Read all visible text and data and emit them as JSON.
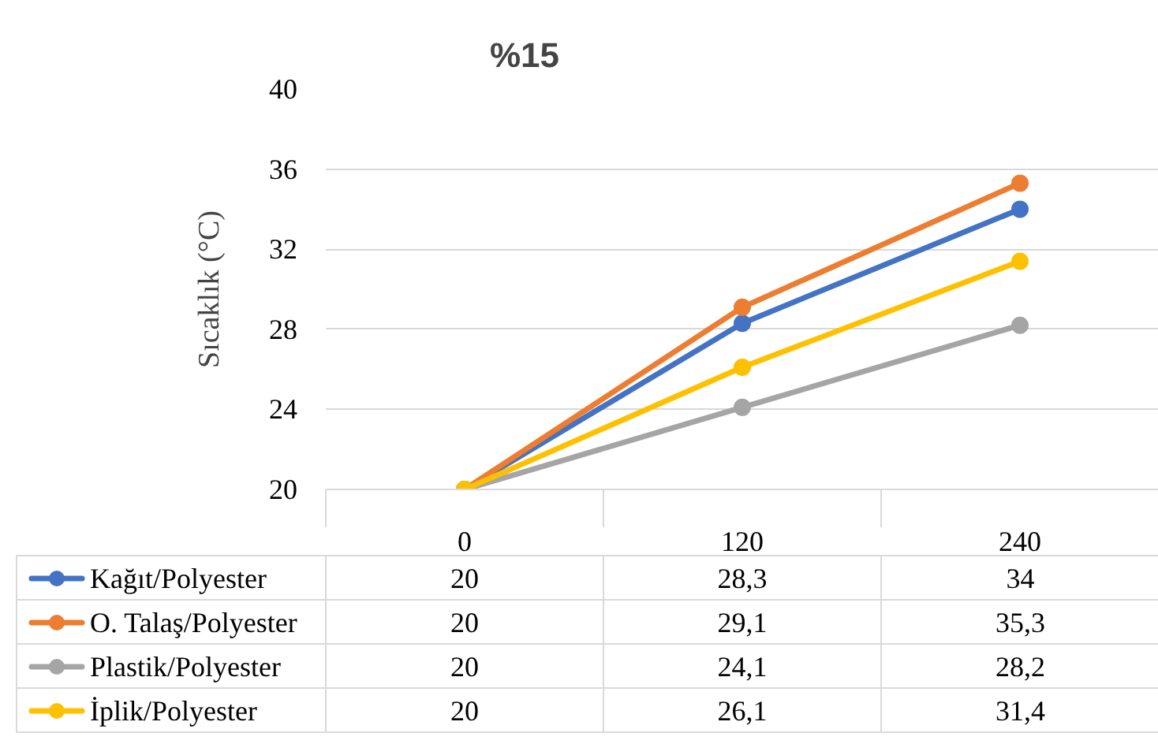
{
  "chart_data": {
    "type": "line",
    "title": "%15",
    "ylabel": "Sıcaklık (°C)",
    "categories": [
      "0",
      "120",
      "240"
    ],
    "series": [
      {
        "name": "Kağıt/Polyester",
        "color": "#4472c4",
        "values": [
          20,
          28.3,
          34
        ],
        "value_labels": [
          "20",
          "28,3",
          "34"
        ]
      },
      {
        "name": "O. Talaş/Polyester",
        "color": "#ed7d31",
        "values": [
          20,
          29.1,
          35.3
        ],
        "value_labels": [
          "20",
          "29,1",
          "35,3"
        ]
      },
      {
        "name": "Plastik/Polyester",
        "color": "#a5a5a5",
        "values": [
          20,
          24.1,
          28.2
        ],
        "value_labels": [
          "20",
          "24,1",
          "28,2"
        ]
      },
      {
        "name": "İplik/Polyester",
        "color": "#ffc000",
        "values": [
          20,
          26.1,
          31.4
        ],
        "value_labels": [
          "20",
          "26,1",
          "31,4"
        ]
      }
    ],
    "ylim": [
      20,
      40
    ],
    "yticks": [
      20,
      24,
      28,
      32,
      36,
      40
    ],
    "grid": "y",
    "legend": "bottom",
    "marker": "circle"
  }
}
